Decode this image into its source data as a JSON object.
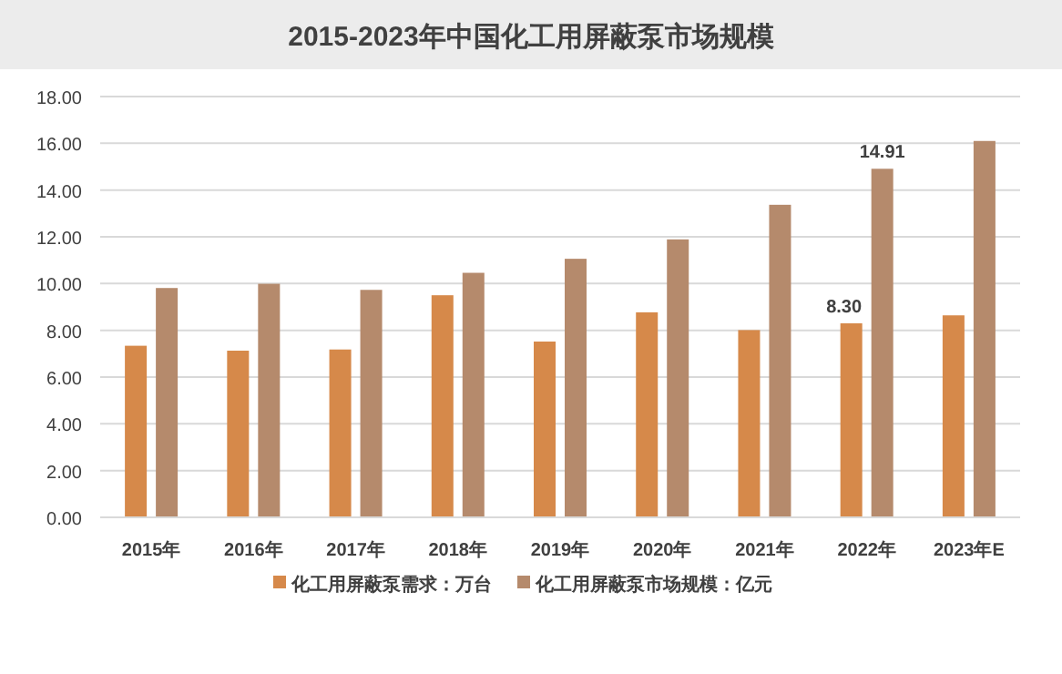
{
  "chart_data": {
    "type": "bar",
    "title": "2015-2023年中国化工用屏蔽泵市场规模",
    "categories": [
      "2015年",
      "2016年",
      "2017年",
      "2018年",
      "2019年",
      "2020年",
      "2021年",
      "2022年",
      "2023年E"
    ],
    "series": [
      {
        "name": "化工用屏蔽泵需求：万台",
        "color": "#d6894a",
        "values": [
          7.34,
          7.13,
          7.18,
          9.5,
          7.52,
          8.77,
          8.01,
          8.3,
          8.64
        ],
        "value_labels": [
          null,
          null,
          null,
          null,
          null,
          null,
          null,
          "8.30",
          null
        ]
      },
      {
        "name": "化工用屏蔽泵市场规模：亿元",
        "color": "#b58a6c",
        "values": [
          9.81,
          9.99,
          9.73,
          10.46,
          11.06,
          11.89,
          13.37,
          14.91,
          16.1
        ],
        "value_labels": [
          null,
          null,
          null,
          null,
          null,
          null,
          null,
          "14.91",
          null
        ]
      }
    ],
    "ylim": [
      0,
      18
    ],
    "yticks": [
      {
        "value": 0,
        "label": "0.00"
      },
      {
        "value": 2,
        "label": "2.00"
      },
      {
        "value": 4,
        "label": "4.00"
      },
      {
        "value": 6,
        "label": "6.00"
      },
      {
        "value": 8,
        "label": "8.00"
      },
      {
        "value": 10,
        "label": "10.00"
      },
      {
        "value": 12,
        "label": "12.00"
      },
      {
        "value": 14,
        "label": "14.00"
      },
      {
        "value": 16,
        "label": "16.00"
      },
      {
        "value": 18,
        "label": "18.00"
      }
    ],
    "grid": "y",
    "legend": "bottom"
  }
}
